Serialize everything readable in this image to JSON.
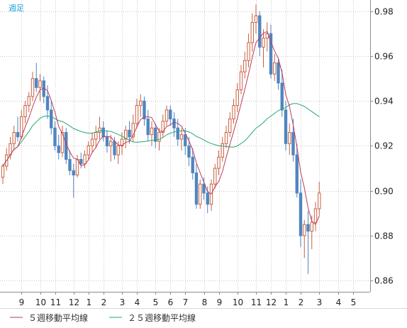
{
  "chart_data": {
    "type": "candlestick",
    "period_label": "週足",
    "colors": {
      "up": "#c96040",
      "down": "#4f86c0",
      "ma5": "#c0385a",
      "ma25": "#21a872",
      "grid": "#c8c8c8",
      "frame": "#8c8c8c",
      "period": "#1a9fd8"
    },
    "ylim": [
      0.855,
      0.985
    ],
    "y_ticks": [
      0.86,
      0.88,
      0.9,
      0.92,
      0.94,
      0.96,
      0.98
    ],
    "grid": true,
    "legend_position": "bottom-left",
    "x_ticks": [
      {
        "label": "9",
        "index": 5
      },
      {
        "label": "10",
        "index": 10
      },
      {
        "label": "11",
        "index": 14
      },
      {
        "label": "12",
        "index": 19
      },
      {
        "label": "1",
        "index": 23
      },
      {
        "label": "2",
        "index": 27
      },
      {
        "label": "3",
        "index": 32
      },
      {
        "label": "4",
        "index": 36
      },
      {
        "label": "5",
        "index": 41
      },
      {
        "label": "6",
        "index": 45
      },
      {
        "label": "7",
        "index": 49
      },
      {
        "label": "8",
        "index": 54
      },
      {
        "label": "9",
        "index": 58
      },
      {
        "label": "10",
        "index": 63
      },
      {
        "label": "11",
        "index": 68
      },
      {
        "label": "12",
        "index": 72
      },
      {
        "label": "1",
        "index": 76
      },
      {
        "label": "2",
        "index": 80
      },
      {
        "label": "3",
        "index": 85
      },
      {
        "label": "4",
        "index": 90
      },
      {
        "label": "5",
        "index": 94
      }
    ],
    "series": [
      {
        "name": "５週移動平均線",
        "color_key": "ma5"
      },
      {
        "name": "２５週移動平均線",
        "color_key": "ma25"
      }
    ],
    "ohlc": [
      [
        0.906,
        0.912,
        0.903,
        0.911
      ],
      [
        0.911,
        0.919,
        0.909,
        0.916
      ],
      [
        0.916,
        0.924,
        0.914,
        0.921
      ],
      [
        0.921,
        0.929,
        0.918,
        0.926
      ],
      [
        0.926,
        0.933,
        0.922,
        0.924
      ],
      [
        0.924,
        0.936,
        0.923,
        0.933
      ],
      [
        0.933,
        0.94,
        0.93,
        0.938
      ],
      [
        0.938,
        0.944,
        0.935,
        0.942
      ],
      [
        0.942,
        0.953,
        0.94,
        0.95
      ],
      [
        0.95,
        0.957,
        0.944,
        0.946
      ],
      [
        0.946,
        0.952,
        0.94,
        0.949
      ],
      [
        0.949,
        0.951,
        0.939,
        0.942
      ],
      [
        0.942,
        0.947,
        0.932,
        0.936
      ],
      [
        0.936,
        0.94,
        0.925,
        0.928
      ],
      [
        0.928,
        0.931,
        0.918,
        0.92
      ],
      [
        0.92,
        0.925,
        0.914,
        0.917
      ],
      [
        0.917,
        0.929,
        0.915,
        0.926
      ],
      [
        0.926,
        0.928,
        0.912,
        0.914
      ],
      [
        0.914,
        0.918,
        0.907,
        0.909
      ],
      [
        0.909,
        0.912,
        0.897,
        0.907
      ],
      [
        0.907,
        0.916,
        0.906,
        0.914
      ],
      [
        0.914,
        0.917,
        0.91,
        0.912
      ],
      [
        0.912,
        0.918,
        0.91,
        0.916
      ],
      [
        0.916,
        0.922,
        0.914,
        0.92
      ],
      [
        0.92,
        0.926,
        0.917,
        0.923
      ],
      [
        0.923,
        0.929,
        0.919,
        0.926
      ],
      [
        0.926,
        0.933,
        0.923,
        0.928
      ],
      [
        0.928,
        0.931,
        0.922,
        0.924
      ],
      [
        0.924,
        0.927,
        0.917,
        0.92
      ],
      [
        0.92,
        0.925,
        0.913,
        0.922
      ],
      [
        0.922,
        0.924,
        0.914,
        0.916
      ],
      [
        0.916,
        0.922,
        0.912,
        0.92
      ],
      [
        0.92,
        0.926,
        0.916,
        0.923
      ],
      [
        0.923,
        0.929,
        0.919,
        0.927
      ],
      [
        0.927,
        0.931,
        0.921,
        0.924
      ],
      [
        0.924,
        0.934,
        0.922,
        0.93
      ],
      [
        0.93,
        0.941,
        0.928,
        0.938
      ],
      [
        0.938,
        0.943,
        0.933,
        0.94
      ],
      [
        0.94,
        0.942,
        0.929,
        0.932
      ],
      [
        0.932,
        0.936,
        0.922,
        0.925
      ],
      [
        0.925,
        0.931,
        0.92,
        0.928
      ],
      [
        0.928,
        0.93,
        0.919,
        0.922
      ],
      [
        0.922,
        0.928,
        0.918,
        0.926
      ],
      [
        0.926,
        0.934,
        0.924,
        0.931
      ],
      [
        0.931,
        0.938,
        0.929,
        0.936
      ],
      [
        0.936,
        0.938,
        0.929,
        0.932
      ],
      [
        0.932,
        0.935,
        0.924,
        0.928
      ],
      [
        0.928,
        0.932,
        0.92,
        0.923
      ],
      [
        0.923,
        0.928,
        0.918,
        0.925
      ],
      [
        0.925,
        0.928,
        0.916,
        0.92
      ],
      [
        0.92,
        0.924,
        0.911,
        0.915
      ],
      [
        0.915,
        0.919,
        0.905,
        0.908
      ],
      [
        0.908,
        0.912,
        0.892,
        0.894
      ],
      [
        0.894,
        0.905,
        0.892,
        0.903
      ],
      [
        0.903,
        0.906,
        0.896,
        0.899
      ],
      [
        0.899,
        0.902,
        0.89,
        0.894
      ],
      [
        0.894,
        0.905,
        0.891,
        0.903
      ],
      [
        0.903,
        0.912,
        0.901,
        0.91
      ],
      [
        0.91,
        0.918,
        0.907,
        0.915
      ],
      [
        0.915,
        0.924,
        0.913,
        0.921
      ],
      [
        0.921,
        0.929,
        0.919,
        0.926
      ],
      [
        0.926,
        0.935,
        0.924,
        0.932
      ],
      [
        0.932,
        0.941,
        0.93,
        0.938
      ],
      [
        0.938,
        0.948,
        0.935,
        0.945
      ],
      [
        0.945,
        0.956,
        0.943,
        0.953
      ],
      [
        0.953,
        0.962,
        0.95,
        0.958
      ],
      [
        0.958,
        0.97,
        0.955,
        0.966
      ],
      [
        0.966,
        0.979,
        0.962,
        0.975
      ],
      [
        0.975,
        0.983,
        0.97,
        0.978
      ],
      [
        0.978,
        0.98,
        0.96,
        0.964
      ],
      [
        0.964,
        0.972,
        0.955,
        0.968
      ],
      [
        0.968,
        0.975,
        0.962,
        0.97
      ],
      [
        0.97,
        0.974,
        0.95,
        0.952
      ],
      [
        0.952,
        0.961,
        0.949,
        0.957
      ],
      [
        0.957,
        0.959,
        0.945,
        0.948
      ],
      [
        0.948,
        0.954,
        0.933,
        0.936
      ],
      [
        0.936,
        0.94,
        0.918,
        0.921
      ],
      [
        0.921,
        0.93,
        0.916,
        0.926
      ],
      [
        0.926,
        0.932,
        0.913,
        0.916
      ],
      [
        0.916,
        0.921,
        0.897,
        0.899
      ],
      [
        0.899,
        0.905,
        0.875,
        0.88
      ],
      [
        0.88,
        0.887,
        0.87,
        0.885
      ],
      [
        0.885,
        0.891,
        0.863,
        0.882
      ],
      [
        0.882,
        0.889,
        0.874,
        0.886
      ],
      [
        0.886,
        0.895,
        0.882,
        0.892
      ],
      [
        0.892,
        0.904,
        0.889,
        0.899
      ]
    ]
  },
  "legend": {
    "ma5": "５週移動平均線",
    "ma25": "２５週移動平均線"
  }
}
